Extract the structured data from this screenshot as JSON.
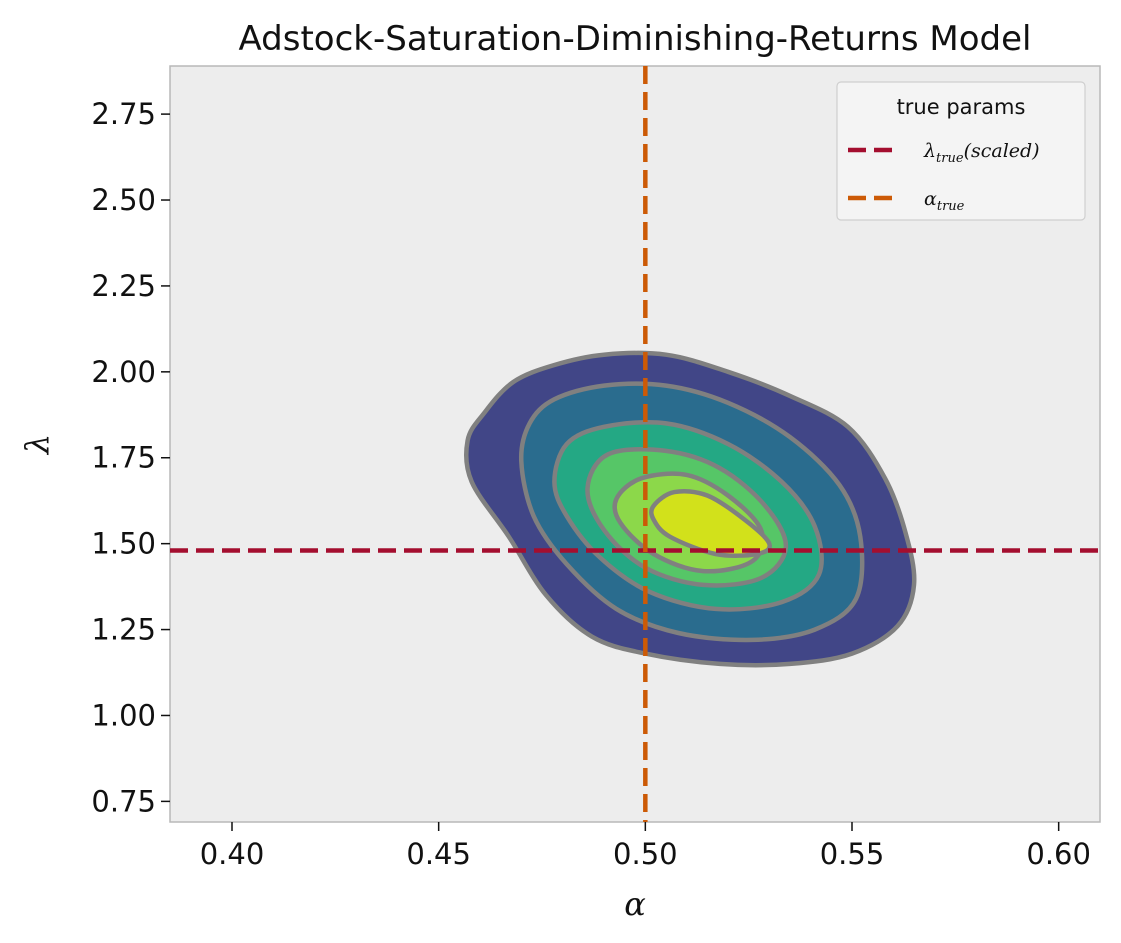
{
  "chart_data": {
    "type": "contour",
    "title": "Adstock-Saturation-Diminishing-Returns Model",
    "xlabel": "α",
    "ylabel": "λ",
    "xlim": [
      0.385,
      0.61
    ],
    "ylim": [
      0.69,
      2.89
    ],
    "x_ticks": [
      "0.40",
      "0.45",
      "0.50",
      "0.55",
      "0.60"
    ],
    "x_tick_values": [
      0.4,
      0.45,
      0.5,
      0.55,
      0.6
    ],
    "y_ticks": [
      "0.75",
      "1.00",
      "1.25",
      "1.50",
      "1.75",
      "2.00",
      "2.25",
      "2.50",
      "2.75"
    ],
    "y_tick_values": [
      0.75,
      1.0,
      1.25,
      1.5,
      1.75,
      2.0,
      2.25,
      2.5,
      2.75
    ],
    "grid": false,
    "background": "#ededed",
    "density": {
      "center_x": 0.513,
      "center_y": 1.57,
      "correlation": "negative",
      "colormap": "viridis",
      "edge_color": "#808080",
      "levels": [
        {
          "color": "#414687",
          "outline": [
            [
              0.457,
              1.8
            ],
            [
              0.461,
              1.88
            ],
            [
              0.468,
              1.97
            ],
            [
              0.478,
              2.02
            ],
            [
              0.49,
              2.05
            ],
            [
              0.505,
              2.05
            ],
            [
              0.52,
              2.0
            ],
            [
              0.535,
              1.93
            ],
            [
              0.549,
              1.84
            ],
            [
              0.558,
              1.69
            ],
            [
              0.563,
              1.53
            ],
            [
              0.565,
              1.38
            ],
            [
              0.561,
              1.26
            ],
            [
              0.55,
              1.18
            ],
            [
              0.535,
              1.15
            ],
            [
              0.518,
              1.15
            ],
            [
              0.5,
              1.18
            ],
            [
              0.487,
              1.23
            ],
            [
              0.476,
              1.35
            ],
            [
              0.467,
              1.52
            ],
            [
              0.458,
              1.68
            ]
          ]
        },
        {
          "color": "#2a6c8e",
          "outline": [
            [
              0.47,
              1.74
            ],
            [
              0.472,
              1.85
            ],
            [
              0.478,
              1.92
            ],
            [
              0.49,
              1.96
            ],
            [
              0.505,
              1.96
            ],
            [
              0.52,
              1.91
            ],
            [
              0.535,
              1.81
            ],
            [
              0.547,
              1.67
            ],
            [
              0.552,
              1.52
            ],
            [
              0.551,
              1.34
            ],
            [
              0.541,
              1.25
            ],
            [
              0.526,
              1.22
            ],
            [
              0.508,
              1.24
            ],
            [
              0.493,
              1.31
            ],
            [
              0.481,
              1.44
            ],
            [
              0.473,
              1.58
            ]
          ]
        },
        {
          "color": "#24a884",
          "outline": [
            [
              0.478,
              1.68
            ],
            [
              0.481,
              1.79
            ],
            [
              0.49,
              1.84
            ],
            [
              0.505,
              1.85
            ],
            [
              0.52,
              1.79
            ],
            [
              0.533,
              1.68
            ],
            [
              0.541,
              1.55
            ],
            [
              0.542,
              1.41
            ],
            [
              0.533,
              1.33
            ],
            [
              0.517,
              1.31
            ],
            [
              0.501,
              1.36
            ],
            [
              0.489,
              1.46
            ],
            [
              0.481,
              1.58
            ]
          ]
        },
        {
          "color": "#56c667",
          "outline": [
            [
              0.486,
              1.66
            ],
            [
              0.491,
              1.76
            ],
            [
              0.505,
              1.77
            ],
            [
              0.518,
              1.72
            ],
            [
              0.529,
              1.61
            ],
            [
              0.534,
              1.49
            ],
            [
              0.528,
              1.4
            ],
            [
              0.514,
              1.38
            ],
            [
              0.5,
              1.43
            ],
            [
              0.49,
              1.54
            ]
          ]
        },
        {
          "color": "#8cd84a",
          "outline": [
            [
              0.493,
              1.63
            ],
            [
              0.499,
              1.69
            ],
            [
              0.51,
              1.7
            ],
            [
              0.52,
              1.64
            ],
            [
              0.528,
              1.54
            ],
            [
              0.526,
              1.45
            ],
            [
              0.514,
              1.42
            ],
            [
              0.502,
              1.47
            ],
            [
              0.494,
              1.56
            ]
          ]
        },
        {
          "color": "#d2e11b",
          "outline": [
            [
              0.502,
              1.61
            ],
            [
              0.507,
              1.65
            ],
            [
              0.515,
              1.64
            ],
            [
              0.524,
              1.57
            ],
            [
              0.53,
              1.5
            ],
            [
              0.527,
              1.47
            ],
            [
              0.517,
              1.47
            ],
            [
              0.506,
              1.52
            ],
            [
              0.502,
              1.57
            ]
          ]
        }
      ]
    },
    "series": [
      {
        "name": "λtrue(scaled)",
        "type": "hline",
        "y": 1.48,
        "color": "#a40e2f"
      },
      {
        "name": "αtrue",
        "type": "vline",
        "x": 0.5,
        "color": "#cc5a06"
      }
    ],
    "legend": {
      "title": "true params",
      "placement": "top-right",
      "entries": [
        {
          "main": "λ",
          "sub": "true",
          "tail": "(scaled)",
          "color": "#a40e2f"
        },
        {
          "main": "α",
          "sub": "true",
          "tail": "",
          "color": "#cc5a06"
        }
      ]
    }
  }
}
